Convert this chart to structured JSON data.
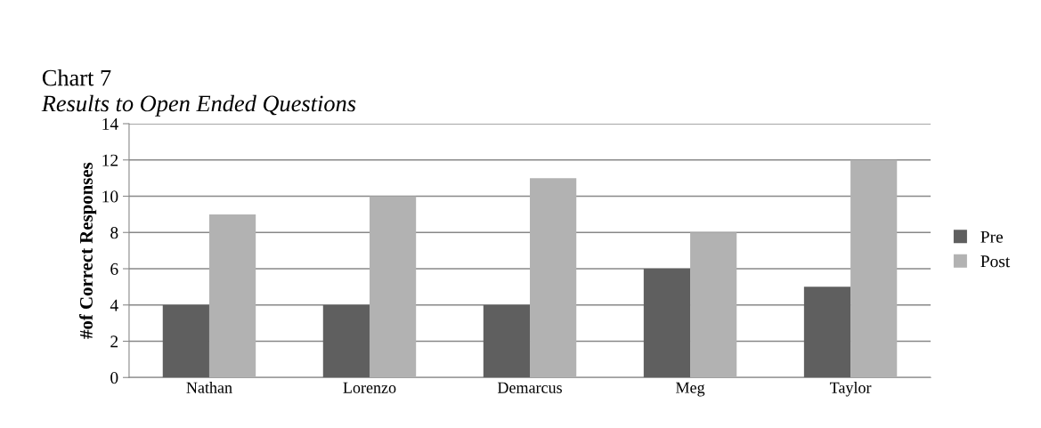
{
  "chart_data": {
    "type": "bar",
    "title": "Chart 7",
    "subtitle": "Results to Open Ended Questions",
    "ylabel": "#of Correct Responses",
    "categories": [
      "Nathan",
      "Lorenzo",
      "Demarcus",
      "Meg",
      "Taylor"
    ],
    "series": [
      {
        "name": "Pre",
        "color": "#5f5f5f",
        "values": [
          4,
          4,
          4,
          6,
          5
        ]
      },
      {
        "name": "Post",
        "color": "#b2b2b2",
        "values": [
          9,
          10,
          11,
          8,
          12
        ]
      }
    ],
    "ylim": [
      0,
      14
    ],
    "yticks": [
      0,
      2,
      4,
      6,
      8,
      10,
      12,
      14
    ],
    "grid": "y",
    "legend": "right"
  }
}
